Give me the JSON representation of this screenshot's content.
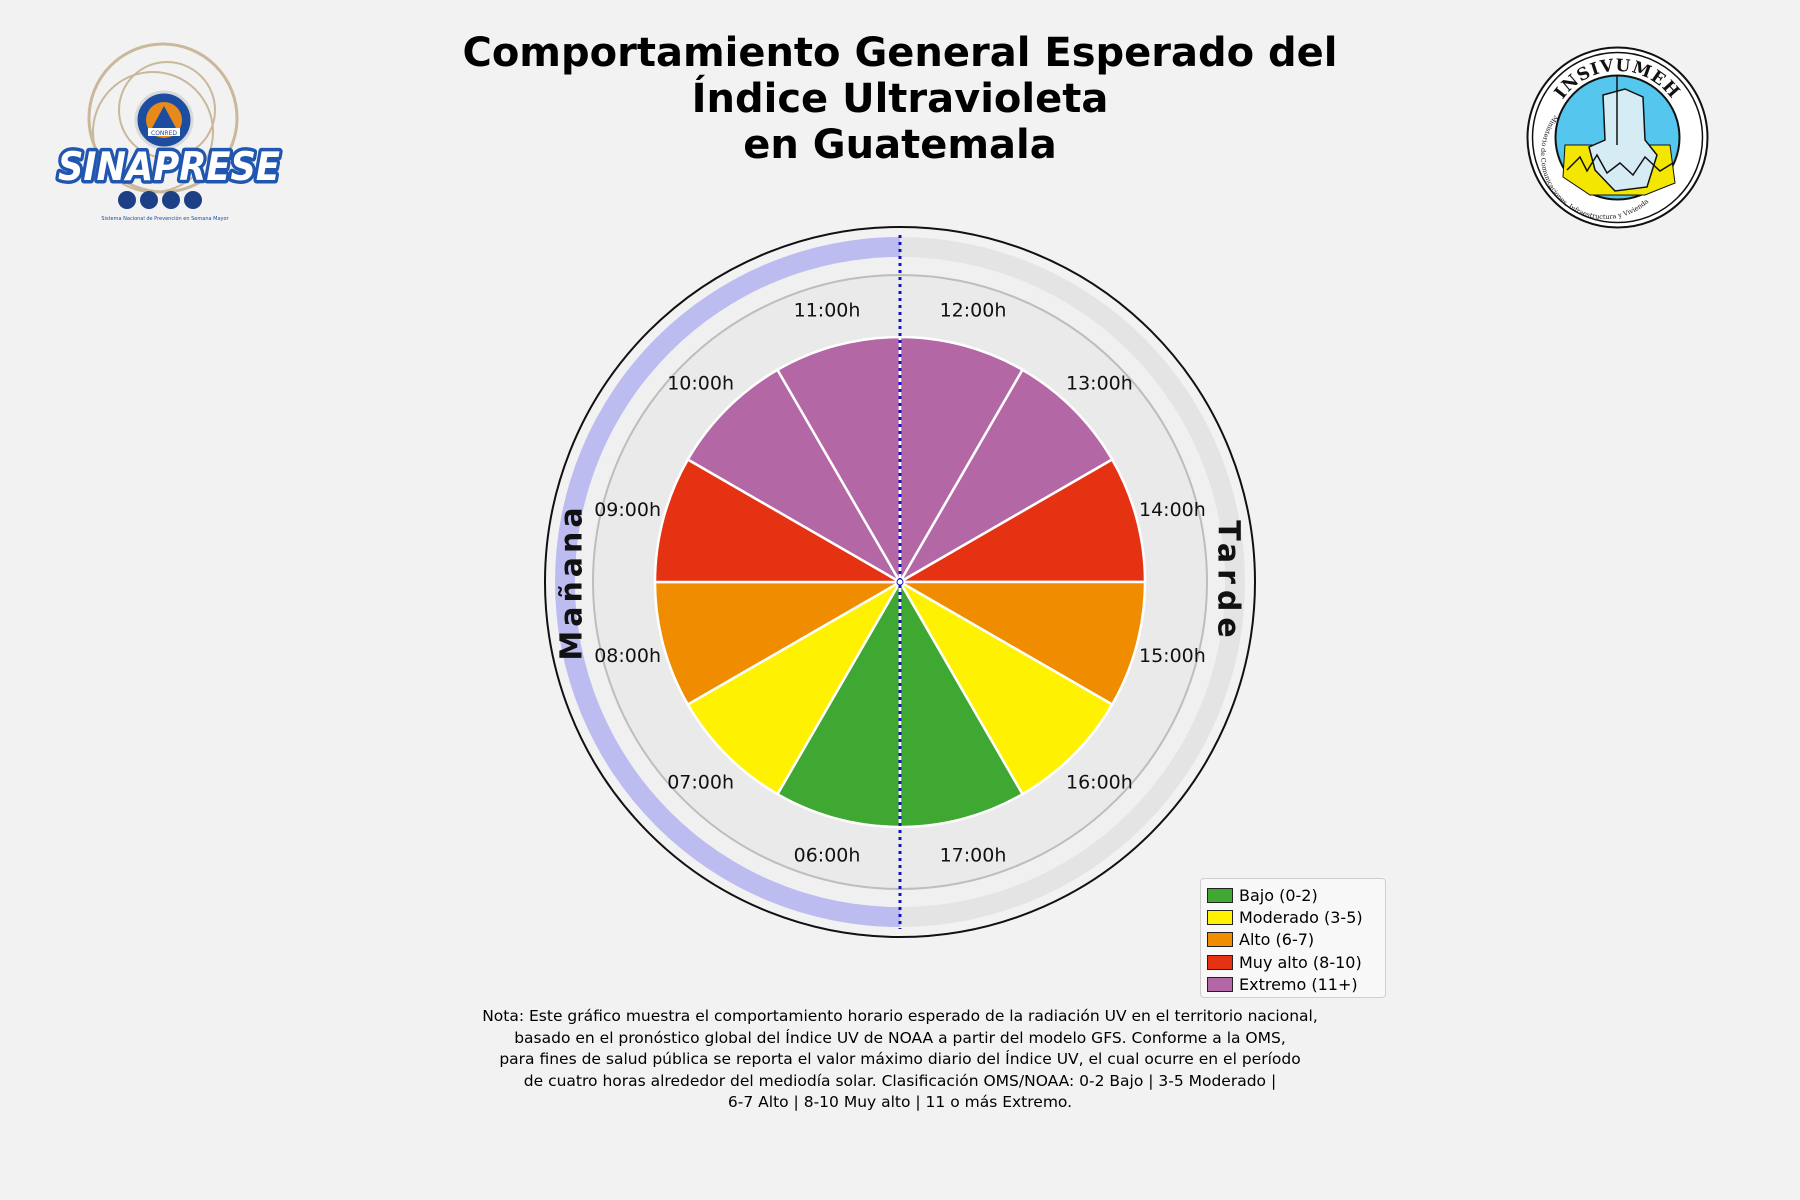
{
  "title": {
    "lines": [
      "Comportamiento General Esperado del",
      "Índice Ultravioleta",
      "en Guatemala"
    ]
  },
  "logos": {
    "left": {
      "text": "SINAPRESE",
      "seal_text": "CONRED",
      "subtitle": "Sistema Nacional de Prevención en Semana Mayor"
    },
    "right": {
      "text": "INSIVUMEH",
      "ring_text": "Ministerio de Comunicaciones, Infraestructura y Vivienda"
    }
  },
  "chart_data": {
    "type": "pie",
    "title": "Comportamiento General Esperado del Índice Ultravioleta en Guatemala",
    "sectors": [
      {
        "hour": "06:00h",
        "category": "Bajo (0-2)"
      },
      {
        "hour": "07:00h",
        "category": "Moderado (3-5)"
      },
      {
        "hour": "08:00h",
        "category": "Alto (6-7)"
      },
      {
        "hour": "09:00h",
        "category": "Muy alto (8-10)"
      },
      {
        "hour": "10:00h",
        "category": "Extremo (11+)"
      },
      {
        "hour": "11:00h",
        "category": "Extremo (11+)"
      },
      {
        "hour": "12:00h",
        "category": "Extremo (11+)"
      },
      {
        "hour": "13:00h",
        "category": "Extremo (11+)"
      },
      {
        "hour": "14:00h",
        "category": "Muy alto (8-10)"
      },
      {
        "hour": "15:00h",
        "category": "Alto (6-7)"
      },
      {
        "hour": "16:00h",
        "category": "Moderado (3-5)"
      },
      {
        "hour": "17:00h",
        "category": "Bajo (0-2)"
      }
    ],
    "categories": [
      {
        "label": "Bajo (0-2)",
        "color": "#3fa832"
      },
      {
        "label": "Moderado (3-5)",
        "color": "#fff200"
      },
      {
        "label": "Alto (6-7)",
        "color": "#f08c00"
      },
      {
        "label": "Muy alto (8-10)",
        "color": "#e53212"
      },
      {
        "label": "Extremo (11+)",
        "color": "#b467a5"
      }
    ],
    "side_labels": {
      "left": "Mañana",
      "right": "Tarde"
    },
    "legend_position": "bottom-right"
  },
  "note": {
    "lines": [
      "Nota: Este gráfico muestra el comportamiento horario esperado de la radiación UV en el territorio nacional,",
      "basado en el pronóstico global del Índice UV de NOAA a partir del modelo GFS. Conforme a la OMS,",
      "para fines de salud pública se reporta el valor máximo diario del Índice UV, el cual ocurre en el período",
      "de cuatro horas alrededor del mediodía solar. Clasificación OMS/NOAA: 0-2 Bajo | 3-5 Moderado |",
      "6-7 Alto | 8-10 Muy alto | 11 o más Extremo."
    ]
  }
}
